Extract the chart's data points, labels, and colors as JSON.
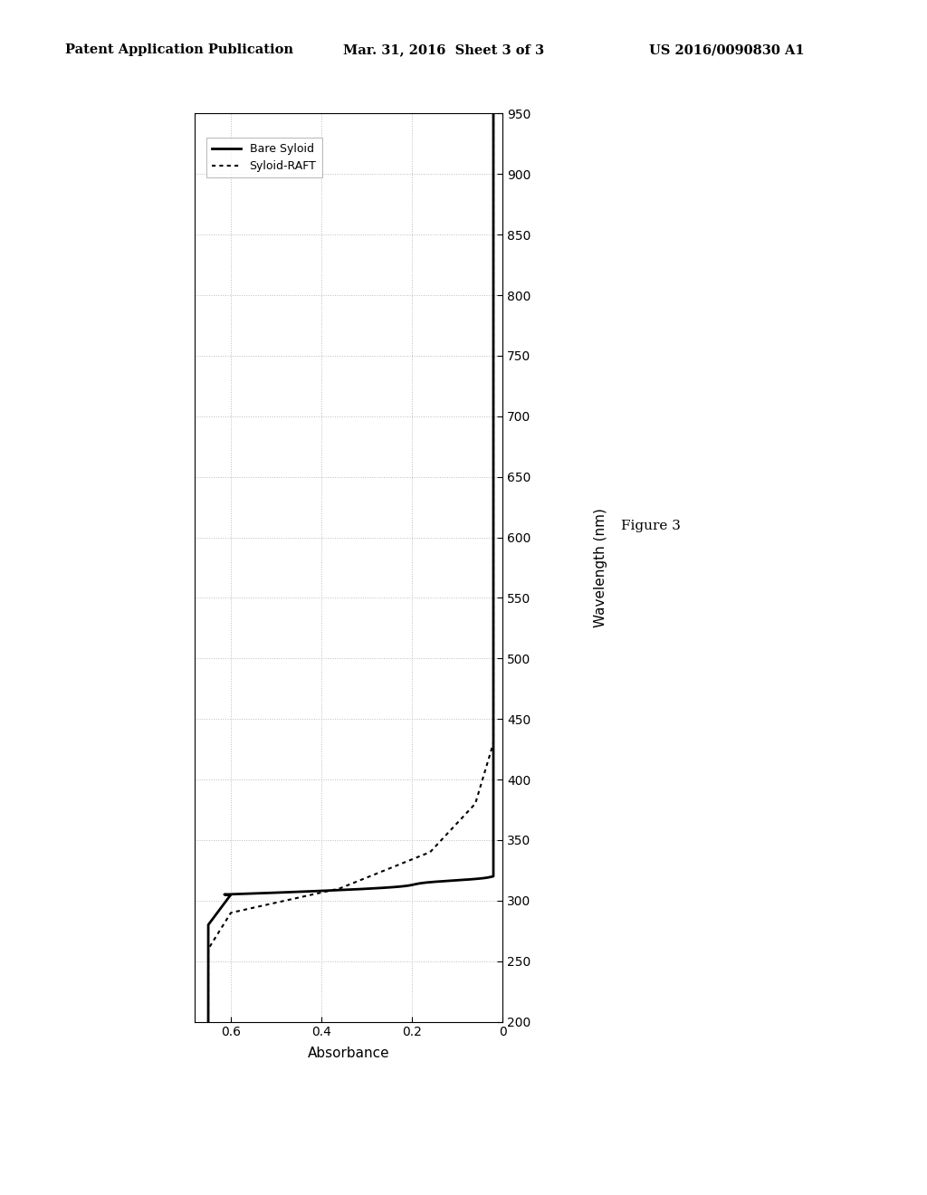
{
  "xlabel_rotated": "Wavelength (nm)",
  "ylabel_rotated": "Absorbance",
  "figure_caption": "Figure 3",
  "wl_min": 200,
  "wl_max": 950,
  "abs_min": 0,
  "abs_max": 0.7,
  "wl_ticks": [
    200,
    250,
    300,
    350,
    400,
    450,
    500,
    550,
    600,
    650,
    700,
    750,
    800,
    850,
    900,
    950
  ],
  "abs_ticks": [
    0,
    0.2,
    0.4,
    0.6
  ],
  "legend_entries": [
    "Bare Syloid",
    "Syloid-RAFT"
  ],
  "header_left": "Patent Application Publication",
  "header_mid": "Mar. 31, 2016  Sheet 3 of 3",
  "header_right": "US 2016/0090830 A1",
  "background_color": "#ffffff",
  "grid_color": "#bbbbbb"
}
